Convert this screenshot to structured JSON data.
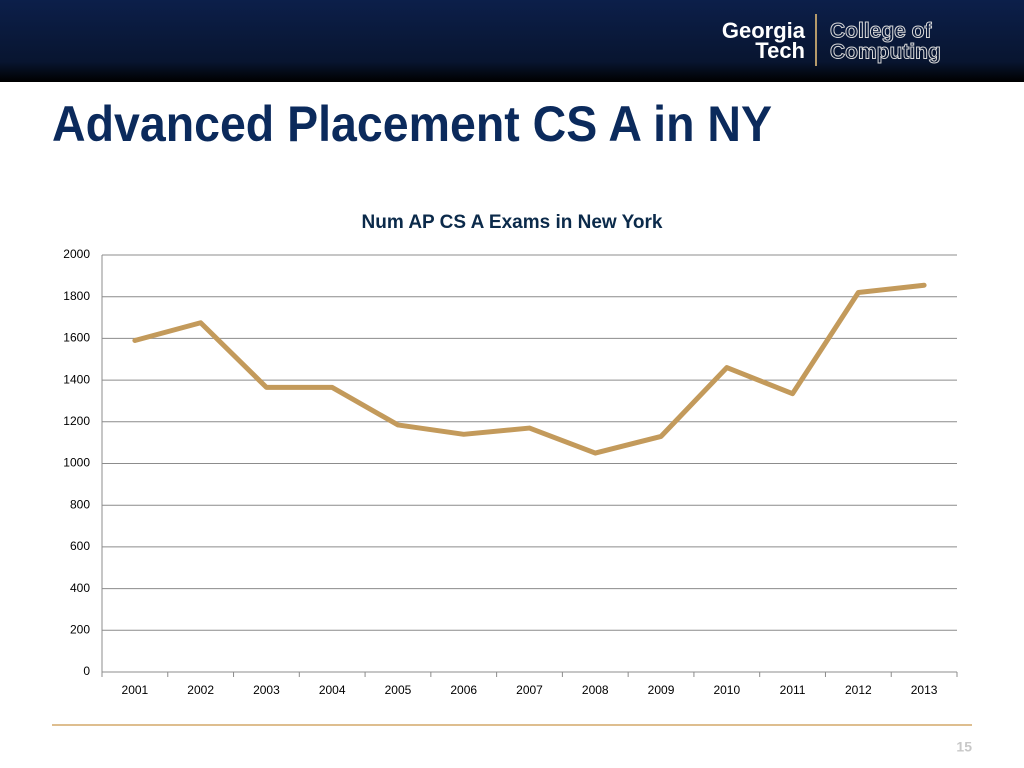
{
  "header": {
    "logo_line1": "Georgia",
    "logo_line2": "Tech",
    "logo_right1": "College of",
    "logo_right2": "Computing"
  },
  "slide_title": "Advanced Placement CS A in NY",
  "page_number": "15",
  "chart_data": {
    "type": "line",
    "title": "Num AP CS A Exams in New York",
    "categories": [
      "2001",
      "2002",
      "2003",
      "2004",
      "2005",
      "2006",
      "2007",
      "2008",
      "2009",
      "2010",
      "2011",
      "2012",
      "2013"
    ],
    "series": [
      {
        "name": "Num AP CS A Exams",
        "color": "#c39a5b",
        "values": [
          1590,
          1675,
          1365,
          1365,
          1185,
          1140,
          1170,
          1050,
          1130,
          1460,
          1335,
          1820,
          1855
        ]
      }
    ],
    "ylim": [
      0,
      2000
    ],
    "yticks": [
      0,
      200,
      400,
      600,
      800,
      1000,
      1200,
      1400,
      1600,
      1800,
      2000
    ],
    "grid": true
  }
}
